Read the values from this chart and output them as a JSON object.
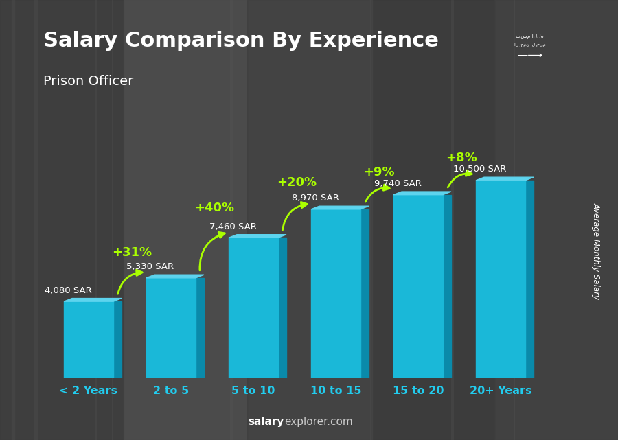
{
  "title": "Salary Comparison By Experience",
  "subtitle": "Prison Officer",
  "ylabel": "Average Monthly Salary",
  "footer_bold": "salary",
  "footer_normal": "explorer.com",
  "categories": [
    "< 2 Years",
    "2 to 5",
    "5 to 10",
    "10 to 15",
    "15 to 20",
    "20+ Years"
  ],
  "values": [
    4080,
    5330,
    7460,
    8970,
    9740,
    10500
  ],
  "bar_color_front": "#1ab8d8",
  "bar_color_side": "#0a8aaa",
  "bar_color_top": "#5dd4ee",
  "pct_labels": [
    "+31%",
    "+40%",
    "+20%",
    "+9%",
    "+8%"
  ],
  "pct_color": "#aaff00",
  "value_labels": [
    "4,080 SAR",
    "5,330 SAR",
    "7,460 SAR",
    "8,970 SAR",
    "9,740 SAR",
    "10,500 SAR"
  ],
  "value_label_color": "#ffffff",
  "title_color": "#ffffff",
  "subtitle_color": "#ffffff",
  "xticklabel_color": "#22ccee",
  "bg_color": "#555555",
  "footer_bold_color": "#ffffff",
  "footer_normal_color": "#cccccc",
  "ylim": [
    0,
    14000
  ],
  "bar_width": 0.6,
  "flag_color": "#4caf50",
  "side_label_color": "#ffffff"
}
